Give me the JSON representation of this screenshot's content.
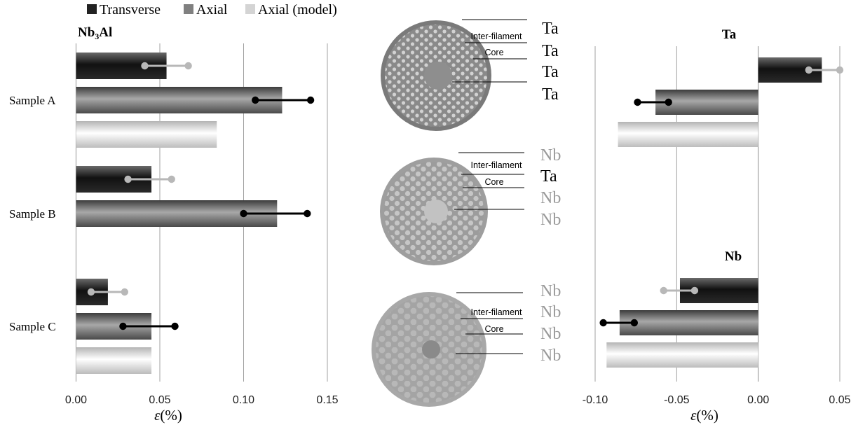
{
  "legend": {
    "items": [
      {
        "label": "Transverse",
        "color": "#222222"
      },
      {
        "label": "Axial",
        "color": "#808080"
      },
      {
        "label": "Axial (model)",
        "color": "#d4d4d4"
      }
    ]
  },
  "micrographs": {
    "wires": [
      {
        "labels": [
          "Ta",
          "Ta",
          "Ta",
          "Ta"
        ],
        "colors": [
          "#000000",
          "#000000",
          "#000000",
          "#000000"
        ],
        "inter_label": "Inter-filament",
        "core_label": "Core"
      },
      {
        "labels": [
          "Nb",
          "Ta",
          "Nb",
          "Nb"
        ],
        "colors": [
          "#9a9a9a",
          "#000000",
          "#9a9a9a",
          "#9a9a9a"
        ],
        "inter_label": "Inter-filament",
        "core_label": "Core"
      },
      {
        "labels": [
          "Nb",
          "Nb",
          "Nb",
          "Nb"
        ],
        "colors": [
          "#9a9a9a",
          "#9a9a9a",
          "#9a9a9a",
          "#9a9a9a"
        ],
        "inter_label": "Inter-filament",
        "core_label": "Core"
      }
    ]
  },
  "chart_data": [
    {
      "type": "bar",
      "orientation": "horizontal",
      "title_base": "Nb",
      "title_sub": "3",
      "title_rest": "Al",
      "xlabel_sym": "ε",
      "xlabel_unit": "(%)",
      "xlim": [
        0,
        0.15
      ],
      "ticks": [
        0,
        0.05,
        0.1,
        0.15
      ],
      "tick_labels": [
        "0.00",
        "0.05",
        "0.10",
        "0.15"
      ],
      "grid": true,
      "categories": [
        "Sample A",
        "Sample B",
        "Sample C"
      ],
      "series": [
        {
          "name": "Transverse",
          "values": [
            0.054,
            0.045,
            0.019
          ],
          "error_range": [
            [
              0.041,
              0.067
            ],
            [
              0.031,
              0.057
            ],
            [
              0.009,
              0.029
            ]
          ],
          "error_color": "#b8b8b8"
        },
        {
          "name": "Axial",
          "values": [
            0.123,
            0.12,
            0.045
          ],
          "error_range": [
            [
              0.107,
              0.14
            ],
            [
              0.1,
              0.138
            ],
            [
              0.028,
              0.059
            ]
          ],
          "error_color": "#000000"
        },
        {
          "name": "Axial (model)",
          "values": [
            0.084,
            null,
            0.045
          ],
          "error_range": [
            null,
            null,
            null
          ],
          "error_color": null
        }
      ]
    },
    {
      "type": "bar",
      "orientation": "horizontal",
      "title": "Ta",
      "xlim": [
        -0.1,
        0.05
      ],
      "grid": true,
      "series": [
        {
          "name": "Transverse",
          "value": 0.039,
          "error_range": [
            0.031,
            0.05
          ],
          "error_color": "#b8b8b8"
        },
        {
          "name": "Axial",
          "value": -0.063,
          "error_range": [
            -0.074,
            -0.055
          ],
          "error_color": "#000000"
        },
        {
          "name": "Axial (model)",
          "value": -0.086,
          "error_range": null,
          "error_color": null
        }
      ]
    },
    {
      "type": "bar",
      "orientation": "horizontal",
      "title": "Nb",
      "xlim": [
        -0.1,
        0.05
      ],
      "xlabel_sym": "ε",
      "xlabel_unit": "(%)",
      "ticks": [
        -0.1,
        -0.05,
        0,
        0.05
      ],
      "tick_labels": [
        "-0.10",
        "-0.05",
        "0.00",
        "0.05"
      ],
      "grid": true,
      "series": [
        {
          "name": "Transverse",
          "value": -0.048,
          "error_range": [
            -0.058,
            -0.039
          ],
          "error_color": "#b8b8b8"
        },
        {
          "name": "Axial",
          "value": -0.085,
          "error_range": [
            -0.095,
            -0.076
          ],
          "error_color": "#000000"
        },
        {
          "name": "Axial (model)",
          "value": -0.093,
          "error_range": null,
          "error_color": null
        }
      ]
    }
  ]
}
